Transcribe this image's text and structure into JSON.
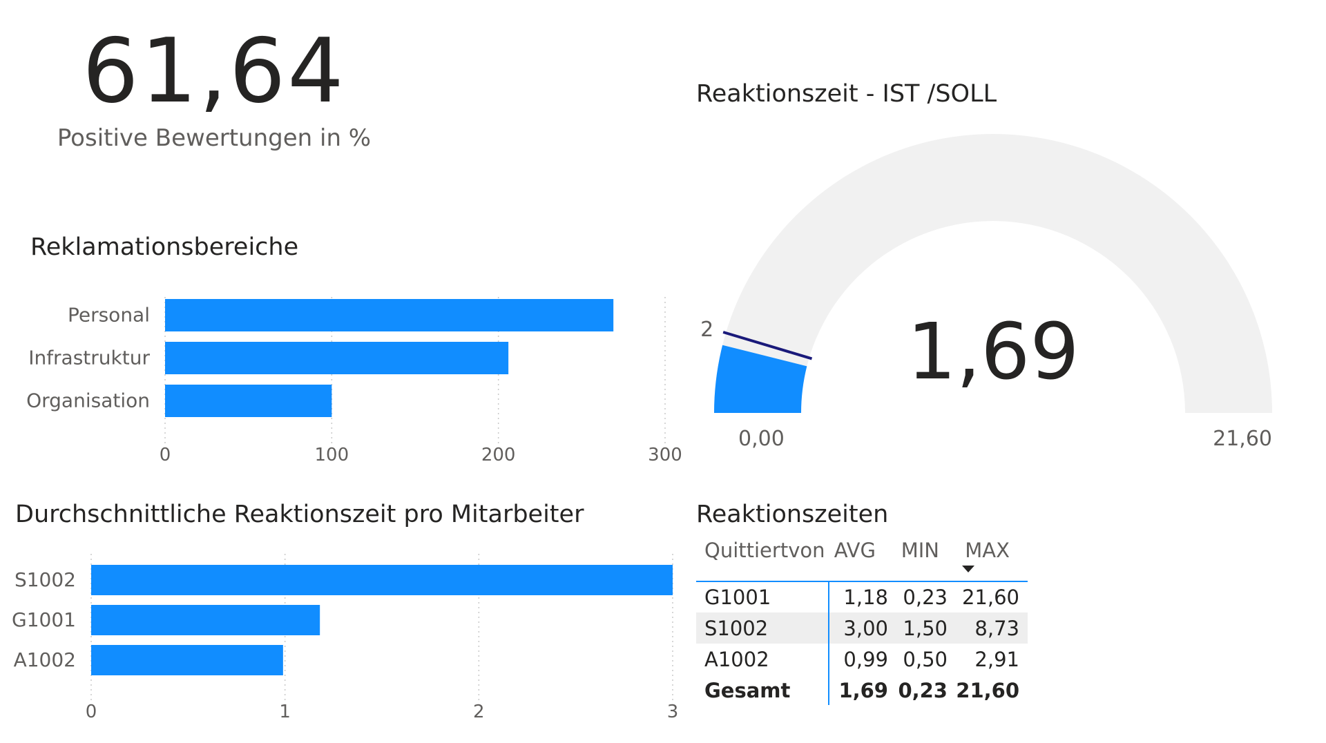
{
  "kpi": {
    "value": "61,64",
    "label": "Positive Bewertungen in %"
  },
  "gauge": {
    "title": "Reaktionszeit - IST /SOLL",
    "value_label": "1,69",
    "min_label": "0,00",
    "max_label": "21,60",
    "target_label": "2"
  },
  "table": {
    "title": "Reaktionszeiten",
    "headers": [
      "Quittiertvon",
      "AVG",
      "MIN",
      "MAX"
    ],
    "rows": [
      [
        "G1001",
        "1,18",
        "0,23",
        "21,60"
      ],
      [
        "S1002",
        "3,00",
        "1,50",
        "8,73"
      ],
      [
        "A1002",
        "0,99",
        "0,50",
        "2,91"
      ]
    ],
    "total": [
      "Gesamt",
      "1,69",
      "0,23",
      "21,60"
    ]
  },
  "chart_data": [
    {
      "type": "bar",
      "orientation": "horizontal",
      "title": "Reklamationsbereiche",
      "categories": [
        "Personal",
        "Infrastruktur",
        "Organisation"
      ],
      "values": [
        269,
        206,
        100
      ],
      "xlim": [
        0,
        300
      ],
      "xticks": [
        "0",
        "100",
        "200",
        "300"
      ],
      "grid": true,
      "color": "#118dff"
    },
    {
      "type": "bar",
      "orientation": "horizontal",
      "title": "Durchschnittliche Reaktionszeit pro Mitarbeiter",
      "categories": [
        "S1002",
        "G1001",
        "A1002"
      ],
      "values": [
        3.0,
        1.18,
        0.99
      ],
      "xlim": [
        0,
        3
      ],
      "xticks": [
        "0",
        "1",
        "2",
        "3"
      ],
      "grid": true,
      "color": "#118dff"
    },
    {
      "type": "gauge",
      "title": "Reaktionszeit - IST /SOLL",
      "value": 1.69,
      "min": 0,
      "max": 21.6,
      "target": 2,
      "fill_color": "#118dff",
      "track_color": "#f1f1f1",
      "target_color": "#1a1a7a"
    }
  ]
}
